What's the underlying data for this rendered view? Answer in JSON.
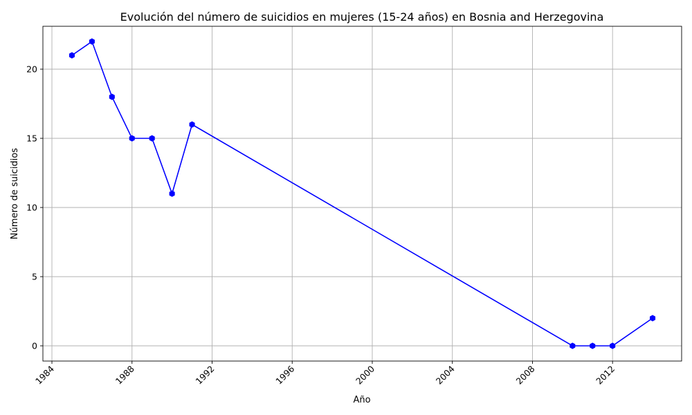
{
  "chart_data": {
    "type": "line",
    "title": "Evolución del número de suicidios en mujeres (15-24 años) en Bosnia and Herzegovina",
    "xlabel": "Año",
    "ylabel": "Número de suicidios",
    "x": [
      1985,
      1986,
      1987,
      1988,
      1989,
      1990,
      1991,
      2010,
      2011,
      2012,
      2014
    ],
    "series": [
      {
        "values": [
          21,
          22,
          18,
          15,
          15,
          11,
          16,
          0,
          0,
          0,
          2
        ],
        "color": "#0000ff",
        "marker": "hexagon"
      }
    ],
    "xticks": [
      1984,
      1988,
      1992,
      1996,
      2000,
      2004,
      2008,
      2012
    ],
    "yticks": [
      0,
      5,
      10,
      15,
      20
    ],
    "xlim": [
      1983.55,
      2015.45
    ],
    "ylim": [
      -1.1,
      23.1
    ],
    "grid": true,
    "xtick_rotation": 45
  }
}
